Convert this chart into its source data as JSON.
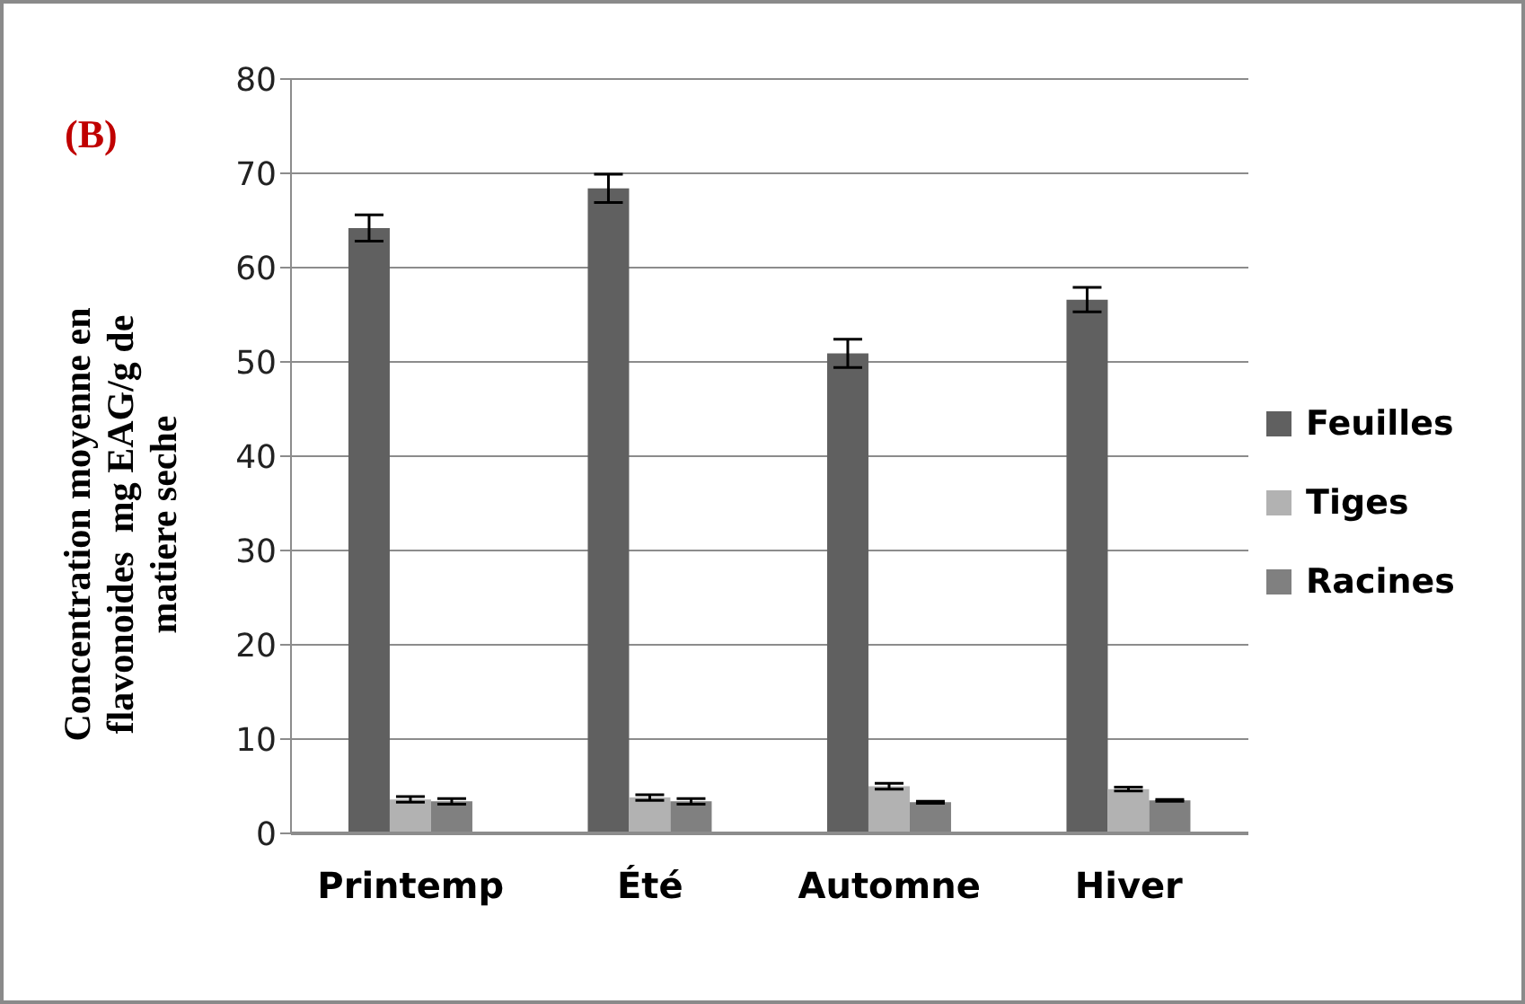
{
  "chart_data": {
    "type": "bar",
    "title": "(B)",
    "ylabel": "Concentration moyenne en flavonoides  mg EAG/g de matiere seche",
    "categories": [
      "Printemp",
      "Été",
      "Automne",
      "Hiver"
    ],
    "series": [
      {
        "name": "Feuilles",
        "color": "#606060",
        "values": [
          64.2,
          68.4,
          50.9,
          56.6
        ],
        "errors": [
          1.4,
          1.5,
          1.5,
          1.3
        ]
      },
      {
        "name": "Tiges",
        "color": "#b2b2b2",
        "values": [
          3.6,
          3.8,
          5.0,
          4.7
        ],
        "errors": [
          0.3,
          0.3,
          0.3,
          0.2
        ]
      },
      {
        "name": "Racines",
        "color": "#808080",
        "values": [
          3.4,
          3.4,
          3.3,
          3.5
        ],
        "errors": [
          0.3,
          0.3,
          0.1,
          0.1
        ]
      }
    ],
    "ylim": [
      0,
      80
    ],
    "yticks": [
      0,
      10,
      20,
      30,
      40,
      50,
      60,
      70,
      80
    ],
    "grid": "y",
    "legend": "right"
  }
}
